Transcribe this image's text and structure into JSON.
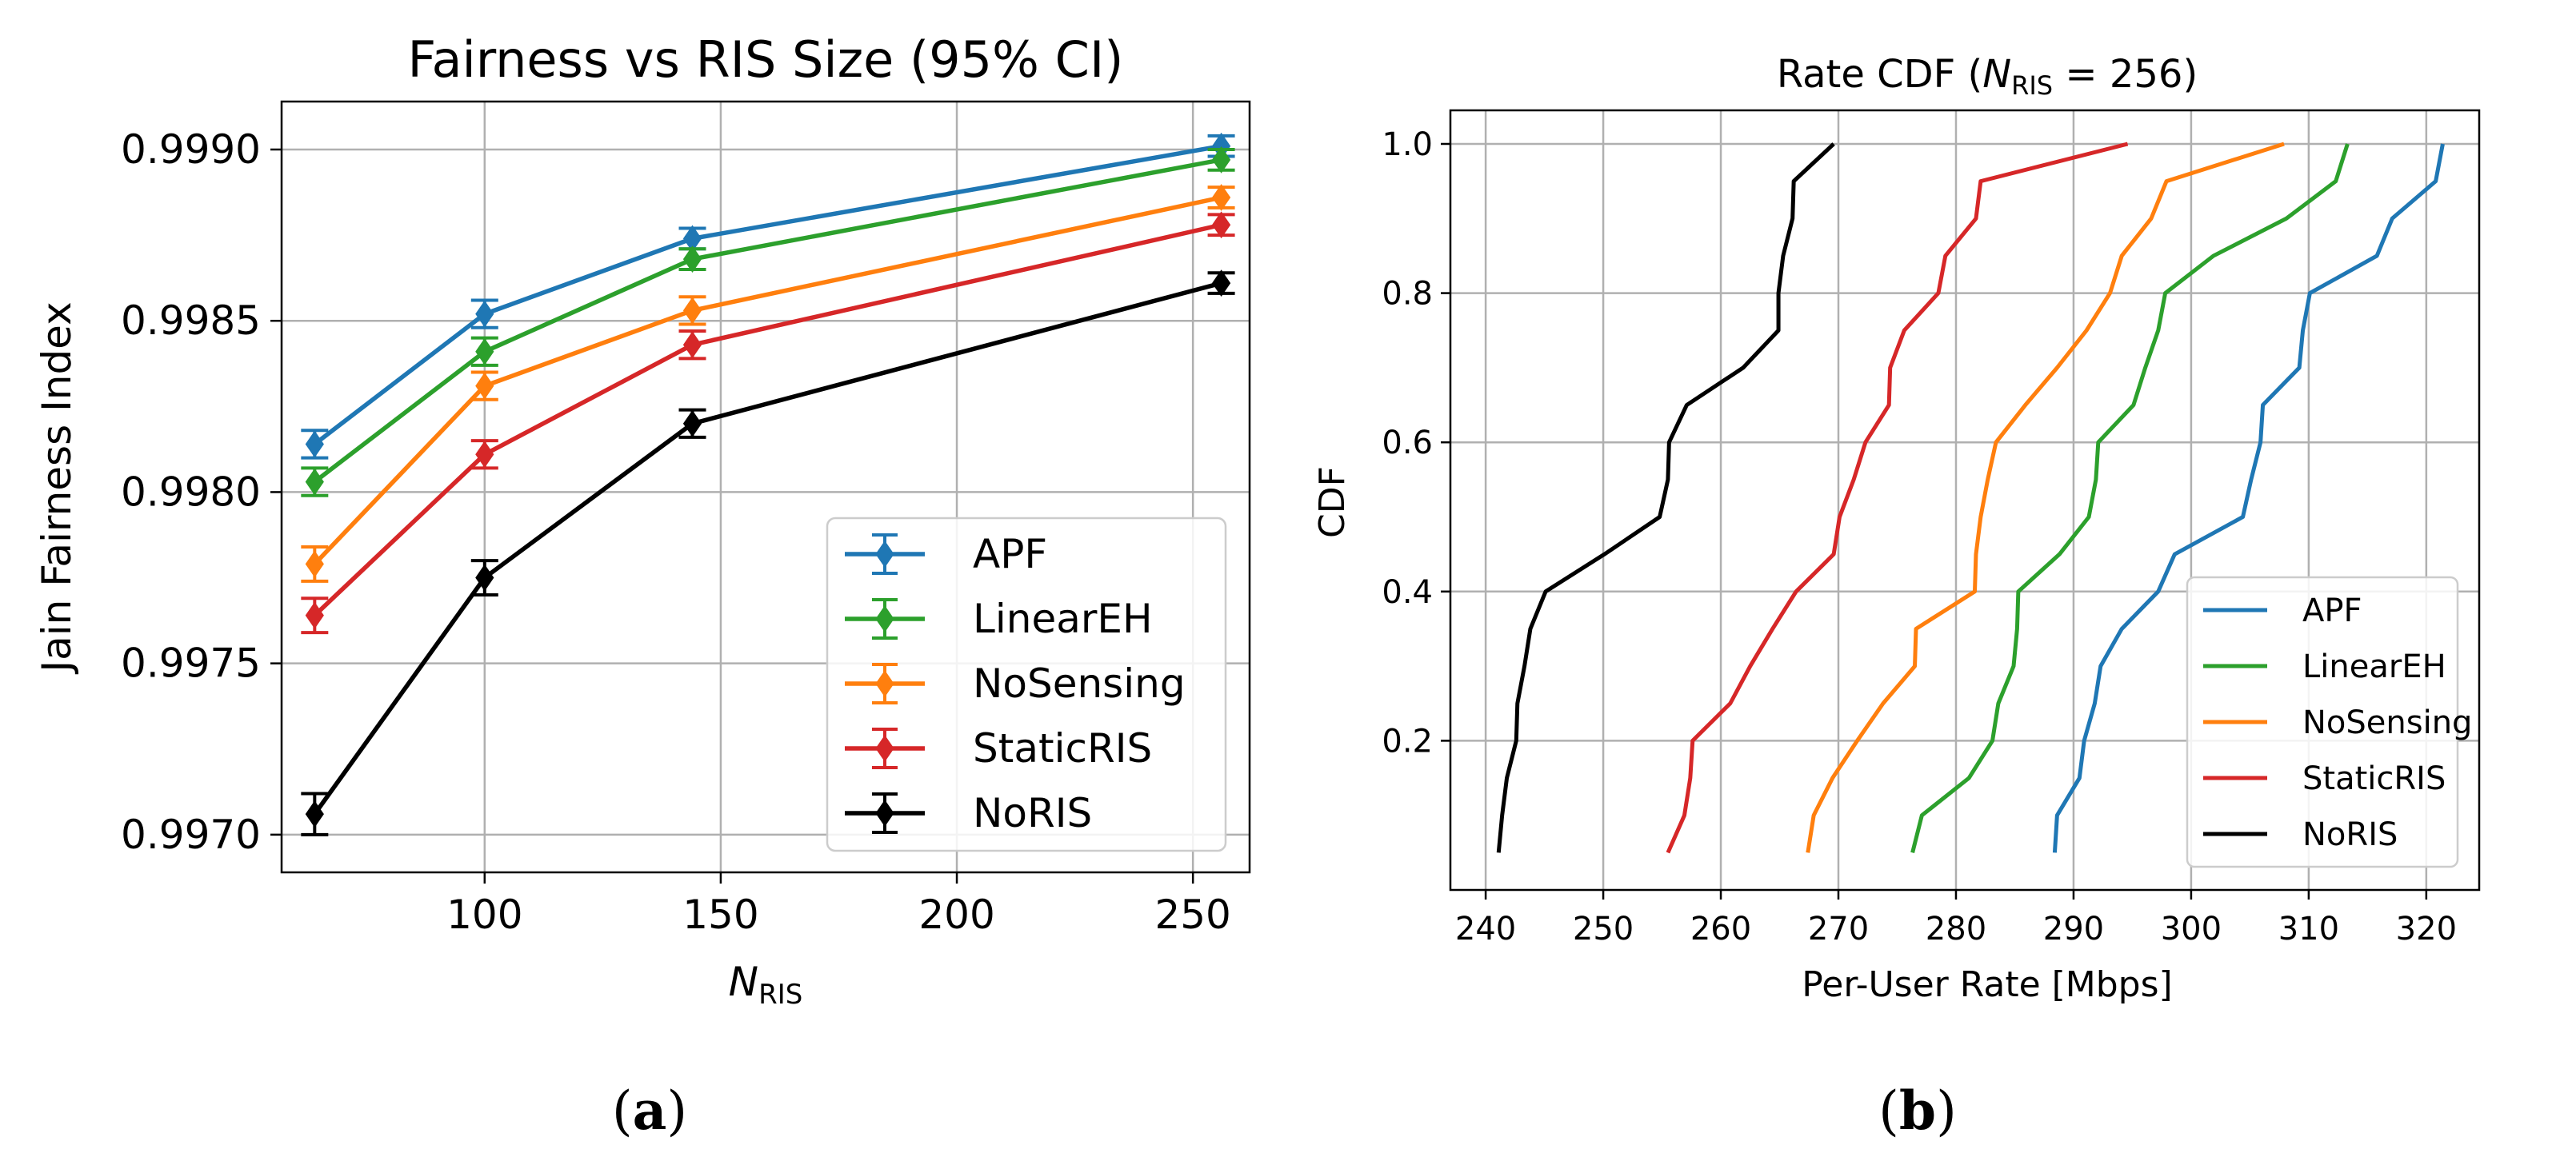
{
  "chart_data": [
    {
      "type": "line",
      "panel_caption": "(a)",
      "title": "Fairness vs RIS Size (95% CI)",
      "xlabel_main": "N",
      "xlabel_sub": "RIS",
      "ylabel": "Jain Fairness Index",
      "x": [
        64,
        100,
        144,
        256
      ],
      "xlim": [
        57,
        262
      ],
      "ylim": [
        0.99689,
        0.99914
      ],
      "xticks": [
        100,
        150,
        200,
        250
      ],
      "xtick_labels": [
        "100",
        "150",
        "200",
        "250"
      ],
      "yticks": [
        0.997,
        0.9975,
        0.998,
        0.9985,
        0.999
      ],
      "ytick_labels": [
        "0.9970",
        "0.9975",
        "0.9980",
        "0.9985",
        "0.9990"
      ],
      "grid": true,
      "legend_position": "bottom-right",
      "marker": "diamond",
      "series": [
        {
          "name": "APF",
          "color": "#1f77b4",
          "values": [
            0.99814,
            0.99852,
            0.99874,
            0.99901
          ],
          "ci": [
            4e-05,
            4e-05,
            3e-05,
            3e-05
          ]
        },
        {
          "name": "LinearEH",
          "color": "#2ca02c",
          "values": [
            0.99803,
            0.99841,
            0.99868,
            0.99897
          ],
          "ci": [
            4e-05,
            4e-05,
            3e-05,
            3e-05
          ]
        },
        {
          "name": "NoSensing",
          "color": "#ff7f0e",
          "values": [
            0.99779,
            0.99831,
            0.99853,
            0.99886
          ],
          "ci": [
            5e-05,
            4e-05,
            4e-05,
            3e-05
          ]
        },
        {
          "name": "StaticRIS",
          "color": "#d62728",
          "values": [
            0.99764,
            0.99811,
            0.99843,
            0.99878
          ],
          "ci": [
            5e-05,
            4e-05,
            4e-05,
            3e-05
          ]
        },
        {
          "name": "NoRIS",
          "color": "#000000",
          "values": [
            0.99706,
            0.99775,
            0.9982,
            0.99861
          ],
          "ci": [
            6e-05,
            5e-05,
            4e-05,
            3e-05
          ]
        }
      ]
    },
    {
      "type": "line",
      "panel_caption": "(b)",
      "title_main": "Rate CDF (",
      "title_var": "N",
      "title_sub": "RIS",
      "title_rest": " = 256)",
      "xlabel": "Per-User Rate [Mbps]",
      "ylabel": "CDF",
      "xlim": [
        237,
        324.5
      ],
      "ylim": [
        -0.0,
        1.045
      ],
      "xticks": [
        240,
        250,
        260,
        270,
        280,
        290,
        300,
        310,
        320
      ],
      "xtick_labels": [
        "240",
        "250",
        "260",
        "270",
        "280",
        "290",
        "300",
        "310",
        "320"
      ],
      "yticks": [
        0.2,
        0.4,
        0.6,
        0.8,
        1.0
      ],
      "ytick_labels": [
        "0.2",
        "0.4",
        "0.6",
        "0.8",
        "1.0"
      ],
      "grid": true,
      "legend_position": "bottom-right",
      "y": [
        0.05,
        0.1,
        0.15,
        0.2,
        0.25,
        0.3,
        0.35,
        0.4,
        0.45,
        0.5,
        0.55,
        0.6,
        0.65,
        0.7,
        0.75,
        0.8,
        0.85,
        0.9,
        0.95,
        1.0
      ],
      "series": [
        {
          "name": "APF",
          "color": "#1f77b4",
          "values": [
            288.4,
            288.6,
            290.5,
            290.9,
            291.8,
            292.3,
            294.1,
            297.2,
            298.6,
            304.4,
            305.1,
            305.9,
            306.1,
            309.2,
            309.5,
            310.1,
            315.8,
            317.1,
            320.8,
            321.4
          ]
        },
        {
          "name": "LinearEH",
          "color": "#2ca02c",
          "values": [
            276.3,
            277.1,
            281.1,
            283.1,
            283.6,
            284.9,
            285.2,
            285.3,
            288.8,
            291.3,
            291.9,
            292.1,
            295.1,
            296.1,
            297.2,
            297.8,
            301.9,
            308.1,
            312.3,
            313.3
          ]
        },
        {
          "name": "NoSensing",
          "color": "#ff7f0e",
          "values": [
            267.4,
            267.9,
            269.5,
            271.6,
            273.8,
            276.5,
            276.6,
            281.6,
            281.7,
            282.1,
            282.7,
            283.4,
            285.9,
            288.6,
            291.1,
            293.1,
            294.1,
            296.6,
            297.9,
            307.9
          ]
        },
        {
          "name": "StaticRIS",
          "color": "#d62728",
          "values": [
            255.5,
            256.9,
            257.4,
            257.6,
            260.8,
            262.5,
            264.4,
            266.4,
            269.6,
            270.1,
            271.3,
            272.3,
            274.3,
            274.4,
            275.6,
            278.5,
            279.1,
            281.7,
            282.1,
            294.6
          ]
        },
        {
          "name": "NoRIS",
          "color": "#000000",
          "values": [
            241.1,
            241.4,
            241.8,
            242.6,
            242.7,
            243.3,
            243.8,
            245.1,
            250.1,
            254.8,
            255.5,
            255.6,
            257.1,
            261.9,
            264.9,
            264.9,
            265.3,
            266.1,
            266.2,
            269.6
          ]
        }
      ]
    }
  ]
}
